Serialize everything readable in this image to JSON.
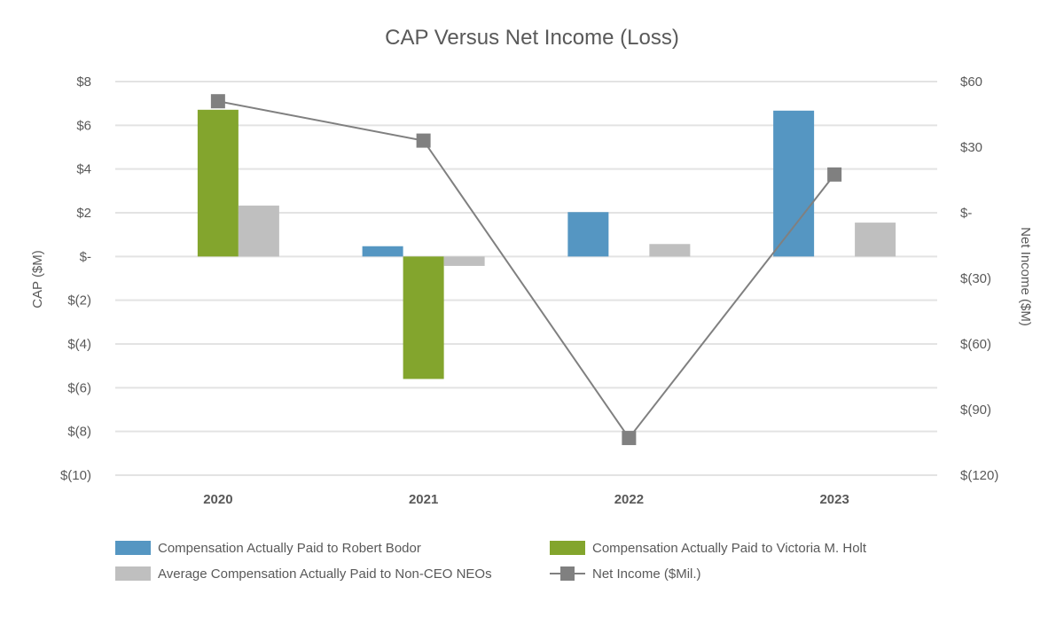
{
  "chart_data": {
    "type": "bar",
    "title": "CAP Versus Net Income (Loss)",
    "categories": [
      "2020",
      "2021",
      "2022",
      "2023"
    ],
    "ylabel": "CAP ($M)",
    "y2label": "Net Income ($M)",
    "ylim": [
      -10,
      8
    ],
    "y2lim": [
      -120,
      60
    ],
    "yticks": [
      8,
      6,
      4,
      2,
      0,
      -2,
      -4,
      -6,
      -8,
      -10
    ],
    "ytick_labels": [
      "$8",
      "$6",
      "$4",
      "$2",
      "$-",
      "$(2)",
      "$(4)",
      "$(6)",
      "$(8)",
      "$(10)"
    ],
    "y2ticks": [
      60,
      30,
      0,
      -30,
      -60,
      -90,
      -120
    ],
    "y2tick_labels": [
      "$60",
      "$30",
      "$-",
      "$(30)",
      "$(60)",
      "$(90)",
      "$(120)"
    ],
    "grid": true,
    "legend_position": "bottom",
    "series": [
      {
        "name": "Compensation Actually Paid to Robert Bodor",
        "type": "bar",
        "axis": "left",
        "color": "#5596c2",
        "values": [
          null,
          0.47,
          2.03,
          6.67
        ]
      },
      {
        "name": "Compensation Actually Paid to Victoria M. Holt",
        "type": "bar",
        "axis": "left",
        "color": "#83a52d",
        "values": [
          6.71,
          -5.6,
          null,
          null
        ]
      },
      {
        "name": "Average Compensation Actually Paid to Non-CEO NEOs",
        "type": "bar",
        "axis": "left",
        "color": "#bfbfbf",
        "values": [
          2.33,
          -0.43,
          0.57,
          1.55
        ]
      },
      {
        "name": "Net Income ($Mil.)",
        "type": "line",
        "axis": "right",
        "color": "#808080",
        "values": [
          51,
          33,
          -103,
          17.5
        ]
      }
    ]
  }
}
